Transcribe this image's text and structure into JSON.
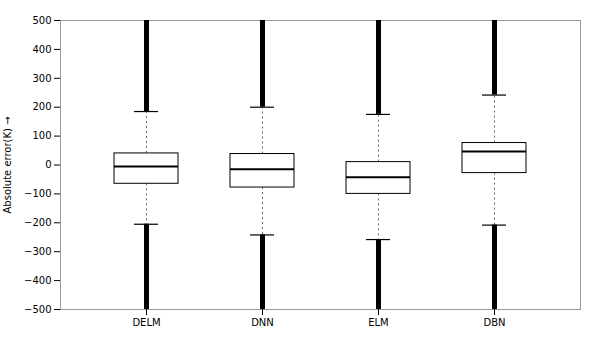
{
  "chart_data": {
    "type": "box",
    "categories": [
      "DELM",
      "DNN",
      "ELM",
      "DBN"
    ],
    "box_stats": [
      {
        "q1": -65,
        "median": -5,
        "q3": 40,
        "whisker_low": -205,
        "whisker_high": 185,
        "flier_low": -500,
        "flier_high": 500
      },
      {
        "q1": -78,
        "median": -15,
        "q3": 38,
        "whisker_low": -242,
        "whisker_high": 200,
        "flier_low": -500,
        "flier_high": 500
      },
      {
        "q1": -100,
        "median": -42,
        "q3": 10,
        "whisker_low": -258,
        "whisker_high": 175,
        "flier_low": -500,
        "flier_high": 500
      },
      {
        "q1": -28,
        "median": 47,
        "q3": 76,
        "whisker_low": -208,
        "whisker_high": 242,
        "flier_low": -500,
        "flier_high": 500
      }
    ],
    "ylabel": "Absolute error(K)",
    "ylim": [
      -500,
      500
    ],
    "yticks": [
      -500,
      -400,
      -300,
      -200,
      -100,
      0,
      100,
      200,
      300,
      400,
      500
    ],
    "grid": false
  }
}
